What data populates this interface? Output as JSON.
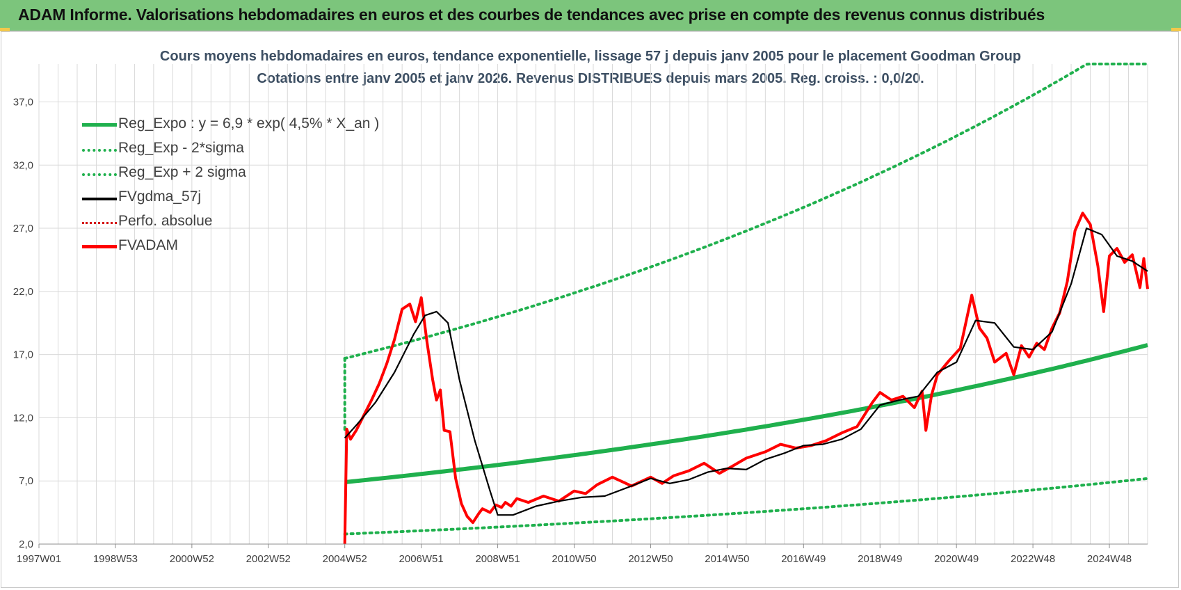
{
  "banner": {
    "title": "ADAM Informe. Valorisations hebdomadaires en euros et des courbes de tendances avec prise en compte des revenus connus distribués"
  },
  "colors": {
    "banner": "#7cc57c",
    "trend": "#1fb04d",
    "smoothed": "#000000",
    "price": "#ff0000",
    "perf": "#d40000",
    "grid": "#d9d9d9",
    "text": "#3d4f63"
  },
  "chart_data": {
    "type": "line",
    "title_line1": "Cours moyens hebdomadaires en euros, tendance exponentielle, lissage 57 j depuis janv 2005  pour le placement Goodman Group",
    "title_line2": "Cotations entre janv 2005 et janv 2026. Revenus DISTRIBUES depuis mars 2005.  Reg. croiss. : 0,0/20.",
    "xlabel": "",
    "ylabel": "",
    "ylim": [
      2,
      40
    ],
    "xlim": [
      1997.0,
      2026.0
    ],
    "y_ticks": [
      "2,0",
      "7,0",
      "12,0",
      "17,0",
      "22,0",
      "27,0",
      "32,0",
      "37,0"
    ],
    "x_ticks": [
      "1997W01",
      "1998W53",
      "2000W52",
      "2002W52",
      "2004W52",
      "2006W51",
      "2008W51",
      "2010W50",
      "2012W50",
      "2014W50",
      "2016W49",
      "2018W49",
      "2020W49",
      "2022W48",
      "2024W48"
    ],
    "grid": true,
    "legend_position": "top-left",
    "trend_formula": {
      "a": 6.9,
      "rate": 0.045,
      "start_year": 2005.0,
      "end_year": 2026.0
    },
    "series": [
      {
        "name": "Reg_Expo : y = 6,9 * exp( 4,5% *  X_an )",
        "style": "solid-thick",
        "color": "#1fb04d",
        "x": [
          2005.0,
          2026.0
        ],
        "y": [
          6.9,
          17.7
        ]
      },
      {
        "name": "Reg_Exp - 2*sigma",
        "style": "dotted",
        "color": "#1fb04d",
        "x": [
          2005.0,
          2026.0
        ],
        "y": [
          2.8,
          7.2
        ]
      },
      {
        "name": "Reg_Exp + 2 sigma",
        "style": "dotted",
        "color": "#1fb04d",
        "x": [
          2005.0,
          2024.0,
          2026.0
        ],
        "y": [
          16.7,
          40.0,
          40.0
        ]
      },
      {
        "name": "FVgdma_57j",
        "style": "solid",
        "color": "#000000",
        "x": [
          2005.0,
          2005.3,
          2005.8,
          2006.3,
          2006.8,
          2007.1,
          2007.4,
          2007.7,
          2008.0,
          2008.4,
          2008.8,
          2009.0,
          2009.4,
          2010.0,
          2010.6,
          2011.2,
          2011.8,
          2012.5,
          2013.0,
          2013.5,
          2014.0,
          2014.5,
          2015.0,
          2015.5,
          2016.0,
          2016.5,
          2017.0,
          2017.5,
          2018.0,
          2018.5,
          2019.0,
          2019.5,
          2020.0,
          2020.5,
          2021.0,
          2021.5,
          2022.0,
          2022.5,
          2023.0,
          2023.5,
          2024.0,
          2024.4,
          2024.8,
          2025.2,
          2025.6,
          2026.0
        ],
        "y": [
          10.4,
          11.4,
          13.2,
          15.6,
          18.6,
          20.1,
          20.4,
          19.5,
          15.0,
          10.2,
          6.2,
          4.3,
          4.3,
          5.0,
          5.4,
          5.7,
          5.8,
          6.6,
          7.2,
          6.8,
          7.1,
          7.7,
          8.0,
          7.9,
          8.7,
          9.2,
          9.8,
          9.9,
          10.3,
          11.1,
          13.0,
          13.4,
          13.7,
          15.6,
          16.4,
          19.7,
          19.5,
          17.6,
          17.4,
          18.8,
          22.6,
          27.0,
          26.5,
          24.8,
          24.4,
          23.6
        ]
      },
      {
        "name": "Perfo. absolue",
        "style": "dotted",
        "color": "#d40000",
        "x": [],
        "y": []
      },
      {
        "name": "FVADAM",
        "style": "solid-thick",
        "color": "#ff0000",
        "x": [
          2005.0,
          2005.05,
          2005.15,
          2005.3,
          2005.5,
          2005.7,
          2005.9,
          2006.1,
          2006.3,
          2006.5,
          2006.7,
          2006.85,
          2007.0,
          2007.15,
          2007.3,
          2007.4,
          2007.5,
          2007.6,
          2007.75,
          2007.9,
          2008.05,
          2008.2,
          2008.35,
          2008.5,
          2008.6,
          2008.8,
          2008.95,
          2009.1,
          2009.2,
          2009.35,
          2009.5,
          2009.8,
          2010.2,
          2010.6,
          2011.0,
          2011.3,
          2011.6,
          2012.0,
          2012.5,
          2013.0,
          2013.3,
          2013.6,
          2014.0,
          2014.4,
          2014.8,
          2015.1,
          2015.5,
          2016.0,
          2016.4,
          2016.8,
          2017.2,
          2017.6,
          2018.0,
          2018.4,
          2018.8,
          2019.0,
          2019.3,
          2019.6,
          2019.9,
          2020.1,
          2020.2,
          2020.35,
          2020.5,
          2020.8,
          2021.1,
          2021.4,
          2021.6,
          2021.8,
          2022.0,
          2022.3,
          2022.5,
          2022.7,
          2022.9,
          2023.1,
          2023.3,
          2023.5,
          2023.7,
          2023.9,
          2024.1,
          2024.3,
          2024.5,
          2024.7,
          2024.85,
          2025.0,
          2025.2,
          2025.4,
          2025.6,
          2025.8,
          2025.9,
          2026.0
        ],
        "y": [
          2.0,
          11.1,
          10.3,
          11.0,
          12.2,
          13.4,
          14.7,
          16.3,
          18.2,
          20.6,
          21.0,
          19.6,
          21.5,
          18.0,
          15.0,
          13.4,
          14.2,
          11.0,
          10.9,
          7.2,
          5.2,
          4.2,
          3.7,
          4.4,
          4.8,
          4.5,
          5.1,
          4.9,
          5.3,
          5.0,
          5.6,
          5.3,
          5.8,
          5.4,
          6.2,
          6.0,
          6.7,
          7.3,
          6.6,
          7.3,
          6.8,
          7.4,
          7.8,
          8.4,
          7.6,
          8.1,
          8.8,
          9.3,
          9.9,
          9.6,
          9.8,
          10.2,
          10.8,
          11.3,
          13.2,
          14.0,
          13.4,
          13.7,
          12.8,
          14.1,
          11.0,
          13.8,
          15.4,
          16.5,
          17.5,
          21.7,
          19.1,
          18.3,
          16.4,
          17.1,
          15.4,
          17.7,
          16.8,
          17.9,
          17.4,
          19.1,
          20.3,
          22.8,
          26.8,
          28.2,
          27.3,
          24.0,
          20.4,
          24.8,
          25.4,
          24.3,
          24.9,
          22.3,
          24.6,
          22.2
        ]
      }
    ]
  }
}
